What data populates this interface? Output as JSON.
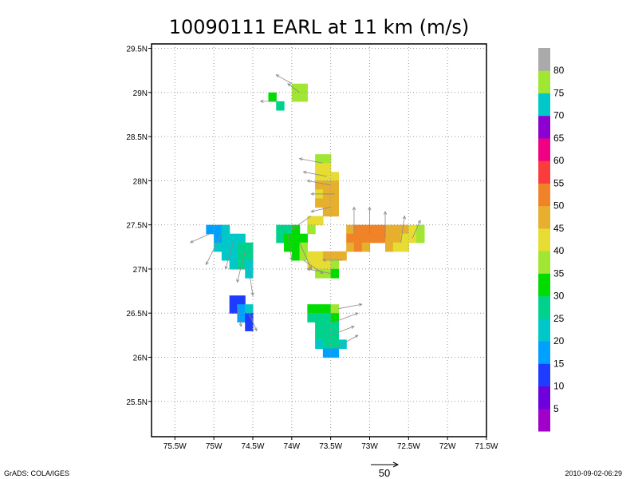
{
  "chart_data": {
    "type": "heatmap",
    "title": "10090111 EARL at 11 km (m/s)",
    "xlabel": "",
    "ylabel": "",
    "xlim": [
      -75.8,
      -71.5
    ],
    "ylim": [
      25.1,
      29.55
    ],
    "x_ticks": [
      -75.5,
      -75,
      -74.5,
      -74,
      -73.5,
      -73,
      -72.5,
      -72,
      -71.5
    ],
    "x_tick_labels": [
      "75.5W",
      "75W",
      "74.5W",
      "74W",
      "73.5W",
      "73W",
      "72.5W",
      "72W",
      "71.5W"
    ],
    "y_ticks": [
      25.5,
      26,
      26.5,
      27,
      27.5,
      28,
      28.5,
      29,
      29.5
    ],
    "y_tick_labels": [
      "25.5N",
      "26N",
      "26.5N",
      "27N",
      "27.5N",
      "28N",
      "28.5N",
      "29N",
      "29.5N"
    ],
    "grid": true,
    "colorbar": {
      "labels": [
        "5",
        "10",
        "15",
        "20",
        "25",
        "30",
        "35",
        "40",
        "45",
        "50",
        "55",
        "60",
        "65",
        "70",
        "75",
        "80"
      ],
      "colors": [
        "#a000c8",
        "#6e00dc",
        "#1e3cff",
        "#00a0ff",
        "#00c8c8",
        "#00d28c",
        "#00dc00",
        "#a0e632",
        "#e6dc32",
        "#e6af2d",
        "#f08228",
        "#fa3c3c",
        "#f00082",
        "#8c00d2",
        "#00c8c8",
        "#a0e632",
        "#aaaaaa"
      ]
    },
    "series": [
      {
        "cells": [
          [
            -75.05,
            27.45,
            15
          ],
          [
            -74.95,
            27.45,
            18
          ],
          [
            -74.85,
            27.45,
            20
          ],
          [
            -74.95,
            27.35,
            18
          ],
          [
            -74.85,
            27.35,
            20
          ],
          [
            -74.75,
            27.35,
            22
          ],
          [
            -74.65,
            27.35,
            24
          ],
          [
            -74.95,
            27.25,
            20
          ],
          [
            -74.85,
            27.25,
            22
          ],
          [
            -74.75,
            27.25,
            24
          ],
          [
            -74.65,
            27.25,
            26
          ],
          [
            -74.55,
            27.25,
            26
          ],
          [
            -74.85,
            27.15,
            22
          ],
          [
            -74.75,
            27.15,
            24
          ],
          [
            -74.65,
            27.15,
            26
          ],
          [
            -74.55,
            27.15,
            25
          ],
          [
            -74.75,
            27.05,
            24
          ],
          [
            -74.65,
            27.05,
            25
          ],
          [
            -74.55,
            27.05,
            24
          ],
          [
            -74.55,
            26.95,
            22
          ],
          [
            -74.75,
            26.65,
            10
          ],
          [
            -74.65,
            26.65,
            14
          ],
          [
            -74.75,
            26.55,
            12
          ],
          [
            -74.65,
            26.55,
            18
          ],
          [
            -74.55,
            26.55,
            20
          ],
          [
            -74.65,
            26.45,
            16
          ],
          [
            -74.55,
            26.45,
            14
          ],
          [
            -74.55,
            26.35,
            12
          ],
          [
            -74.25,
            28.95,
            32
          ],
          [
            -74.15,
            28.85,
            28
          ],
          [
            -73.95,
            29.05,
            36
          ],
          [
            -73.85,
            29.05,
            37
          ],
          [
            -73.95,
            28.95,
            35
          ],
          [
            -73.85,
            28.95,
            35
          ],
          [
            -74.15,
            27.45,
            25
          ],
          [
            -74.05,
            27.45,
            28
          ],
          [
            -73.95,
            27.45,
            30
          ],
          [
            -74.15,
            27.35,
            27
          ],
          [
            -74.05,
            27.35,
            30
          ],
          [
            -73.95,
            27.35,
            32
          ],
          [
            -73.85,
            27.35,
            34
          ],
          [
            -74.05,
            27.25,
            30
          ],
          [
            -73.95,
            27.25,
            33
          ],
          [
            -73.85,
            27.25,
            35
          ],
          [
            -73.95,
            27.15,
            32
          ],
          [
            -73.85,
            27.15,
            35
          ],
          [
            -73.75,
            27.55,
            40
          ],
          [
            -73.65,
            27.55,
            40
          ],
          [
            -73.75,
            27.45,
            39
          ],
          [
            -73.65,
            28.25,
            36
          ],
          [
            -73.55,
            28.25,
            37
          ],
          [
            -73.65,
            28.15,
            40
          ],
          [
            -73.55,
            28.15,
            42
          ],
          [
            -73.65,
            28.05,
            43
          ],
          [
            -73.55,
            28.05,
            44
          ],
          [
            -73.45,
            28.05,
            44
          ],
          [
            -73.65,
            27.95,
            45
          ],
          [
            -73.55,
            27.95,
            47
          ],
          [
            -73.45,
            27.95,
            47
          ],
          [
            -73.65,
            27.85,
            44
          ],
          [
            -73.55,
            27.85,
            46
          ],
          [
            -73.45,
            27.85,
            48
          ],
          [
            -73.65,
            27.75,
            45
          ],
          [
            -73.55,
            27.75,
            47
          ],
          [
            -73.45,
            27.75,
            48
          ],
          [
            -73.55,
            27.65,
            46
          ],
          [
            -73.45,
            27.65,
            47
          ],
          [
            -73.25,
            27.45,
            48
          ],
          [
            -73.15,
            27.45,
            50
          ],
          [
            -73.05,
            27.45,
            52
          ],
          [
            -72.95,
            27.45,
            51
          ],
          [
            -72.85,
            27.45,
            50
          ],
          [
            -72.75,
            27.45,
            49
          ],
          [
            -72.65,
            27.45,
            48
          ],
          [
            -72.55,
            27.45,
            46
          ],
          [
            -72.45,
            27.45,
            43
          ],
          [
            -73.25,
            27.35,
            50
          ],
          [
            -73.15,
            27.35,
            52
          ],
          [
            -73.05,
            27.35,
            52
          ],
          [
            -72.95,
            27.35,
            51
          ],
          [
            -72.85,
            27.35,
            50
          ],
          [
            -72.75,
            27.35,
            48
          ],
          [
            -72.65,
            27.35,
            47
          ],
          [
            -72.55,
            27.35,
            42
          ],
          [
            -72.45,
            27.35,
            40
          ],
          [
            -73.25,
            27.25,
            49
          ],
          [
            -73.15,
            27.25,
            50
          ],
          [
            -73.05,
            27.25,
            48
          ],
          [
            -72.75,
            27.25,
            45
          ],
          [
            -72.65,
            27.25,
            44
          ],
          [
            -72.55,
            27.25,
            42
          ],
          [
            -72.35,
            27.45,
            36
          ],
          [
            -72.35,
            27.35,
            35
          ],
          [
            -73.75,
            27.15,
            42
          ],
          [
            -73.65,
            27.15,
            44
          ],
          [
            -73.55,
            27.15,
            45
          ],
          [
            -73.45,
            27.15,
            46
          ],
          [
            -73.35,
            27.15,
            45
          ],
          [
            -73.75,
            27.05,
            40
          ],
          [
            -73.65,
            27.05,
            42
          ],
          [
            -73.55,
            27.05,
            43
          ],
          [
            -73.45,
            27.05,
            38
          ],
          [
            -73.65,
            26.95,
            37
          ],
          [
            -73.55,
            26.95,
            36
          ],
          [
            -73.45,
            26.95,
            34
          ],
          [
            -73.75,
            26.55,
            30
          ],
          [
            -73.65,
            26.55,
            30
          ],
          [
            -73.55,
            26.55,
            33
          ],
          [
            -73.45,
            26.55,
            36
          ],
          [
            -73.75,
            26.45,
            26
          ],
          [
            -73.65,
            26.45,
            27
          ],
          [
            -73.55,
            26.45,
            29
          ],
          [
            -73.45,
            26.45,
            31
          ],
          [
            -73.65,
            26.35,
            26
          ],
          [
            -73.55,
            26.35,
            26
          ],
          [
            -73.45,
            26.35,
            28
          ],
          [
            -73.65,
            26.25,
            25
          ],
          [
            -73.55,
            26.25,
            26
          ],
          [
            -73.45,
            26.25,
            26
          ],
          [
            -73.35,
            26.15,
            24
          ],
          [
            -73.65,
            26.15,
            24
          ],
          [
            -73.55,
            26.15,
            25
          ],
          [
            -73.45,
            26.15,
            25
          ],
          [
            -73.55,
            26.05,
            15
          ],
          [
            -73.45,
            26.05,
            16
          ]
        ]
      }
    ],
    "vectors": [
      [
        -75.05,
        27.4,
        -0.25,
        -0.1
      ],
      [
        -74.9,
        27.4,
        -0.2,
        -0.35
      ],
      [
        -74.75,
        27.3,
        -0.1,
        -0.3
      ],
      [
        -74.6,
        27.2,
        -0.1,
        -0.35
      ],
      [
        -74.55,
        27.0,
        0.05,
        -0.3
      ],
      [
        -74.7,
        26.6,
        0.05,
        -0.25
      ],
      [
        -74.55,
        26.5,
        0.1,
        -0.2
      ],
      [
        -74.2,
        28.9,
        -0.2,
        0.0
      ],
      [
        -74.0,
        29.1,
        -0.2,
        0.1
      ],
      [
        -73.9,
        29.0,
        -0.15,
        0.1
      ],
      [
        -74.05,
        27.4,
        0.05,
        -0.3
      ],
      [
        -73.9,
        27.3,
        0.15,
        -0.3
      ],
      [
        -73.85,
        27.1,
        0.25,
        -0.15
      ],
      [
        -73.75,
        27.6,
        -0.25,
        -0.15
      ],
      [
        -73.6,
        28.2,
        -0.3,
        0.05
      ],
      [
        -73.55,
        28.05,
        -0.3,
        0.05
      ],
      [
        -73.5,
        27.95,
        -0.3,
        0.05
      ],
      [
        -73.45,
        27.85,
        -0.3,
        0.0
      ],
      [
        -73.5,
        27.7,
        -0.25,
        -0.05
      ],
      [
        -73.2,
        27.4,
        0.0,
        0.3
      ],
      [
        -73.0,
        27.4,
        0.0,
        0.3
      ],
      [
        -72.8,
        27.35,
        0.0,
        0.3
      ],
      [
        -72.6,
        27.3,
        0.05,
        0.3
      ],
      [
        -72.45,
        27.35,
        0.1,
        0.2
      ],
      [
        -73.35,
        27.1,
        -0.25,
        0.0
      ],
      [
        -73.5,
        26.95,
        -0.3,
        0.05
      ],
      [
        -73.4,
        26.55,
        0.3,
        0.05
      ],
      [
        -73.45,
        26.4,
        0.3,
        0.1
      ],
      [
        -73.5,
        26.25,
        0.3,
        0.1
      ],
      [
        -73.45,
        26.1,
        0.3,
        0.15
      ]
    ],
    "reference_vector": {
      "label": "50"
    }
  },
  "footer": {
    "left": "GrADS: COLA/IGES",
    "right": "2010-09-02-06:29"
  }
}
